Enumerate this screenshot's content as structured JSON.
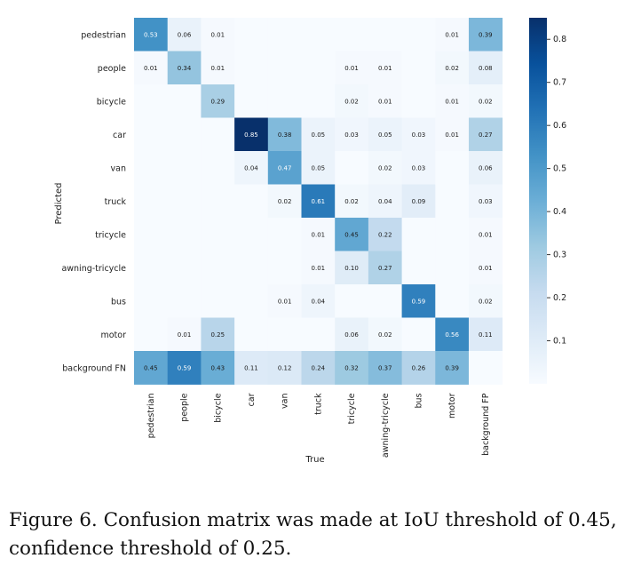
{
  "chart_data": {
    "type": "heatmap",
    "xlabel": "True",
    "ylabel": "Predicted",
    "x_categories": [
      "pedestrian",
      "people",
      "bicycle",
      "car",
      "van",
      "truck",
      "tricycle",
      "awning-tricycle",
      "bus",
      "motor",
      "background FP"
    ],
    "y_categories": [
      "pedestrian",
      "people",
      "bicycle",
      "car",
      "van",
      "truck",
      "tricycle",
      "awning-tricycle",
      "bus",
      "motor",
      "background FN"
    ],
    "values": [
      [
        0.53,
        0.06,
        0.01,
        null,
        null,
        null,
        null,
        null,
        null,
        0.01,
        0.39
      ],
      [
        0.01,
        0.34,
        0.01,
        null,
        null,
        null,
        0.01,
        0.01,
        null,
        0.02,
        0.08
      ],
      [
        null,
        null,
        0.29,
        null,
        null,
        null,
        0.02,
        0.01,
        null,
        0.01,
        0.02
      ],
      [
        null,
        null,
        null,
        0.85,
        0.38,
        0.05,
        0.03,
        0.05,
        0.03,
        0.01,
        0.27
      ],
      [
        null,
        null,
        null,
        0.04,
        0.47,
        0.05,
        null,
        0.02,
        0.03,
        null,
        0.06
      ],
      [
        null,
        null,
        null,
        null,
        0.02,
        0.61,
        0.02,
        0.04,
        0.09,
        null,
        0.03
      ],
      [
        null,
        null,
        null,
        null,
        null,
        0.01,
        0.45,
        0.22,
        null,
        null,
        0.01
      ],
      [
        null,
        null,
        null,
        null,
        null,
        0.01,
        0.1,
        0.27,
        null,
        null,
        0.01
      ],
      [
        null,
        null,
        null,
        null,
        0.01,
        0.04,
        null,
        null,
        0.59,
        null,
        0.02
      ],
      [
        null,
        0.01,
        0.25,
        null,
        null,
        null,
        0.06,
        0.02,
        null,
        0.56,
        0.11
      ],
      [
        0.45,
        0.59,
        0.43,
        0.11,
        0.12,
        0.24,
        0.32,
        0.37,
        0.26,
        0.39,
        null
      ]
    ],
    "colorbar": {
      "range": [
        0,
        0.85
      ],
      "ticks": [
        0.1,
        0.2,
        0.3,
        0.4,
        0.5,
        0.6,
        0.7,
        0.8
      ],
      "colormap": "Blues"
    }
  },
  "caption": "Figure 6. Confusion matrix was made at IoU threshold of 0.45, confidence threshold of 0.25."
}
